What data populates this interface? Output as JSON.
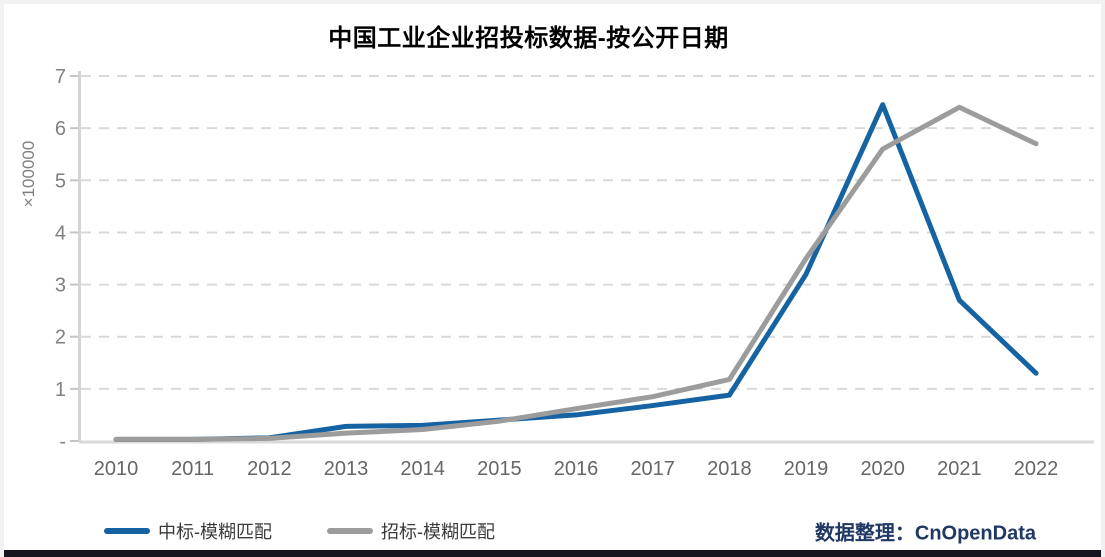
{
  "page": {
    "title": "中国工业企业招投标数据-按公开日期",
    "credit": {
      "label": "数据整理：",
      "brand": "CnOpenData"
    }
  },
  "colors": {
    "series_win_blue": "#1563a2",
    "series_tender_gray": "#9c9c9c",
    "grid": "#d9d9d9",
    "axis": "#d4d4d4",
    "y_tick_text": "#808080",
    "x_tick_text": "#666666",
    "credit_navy": "#1f3864",
    "bottom_bar": "#14141e"
  },
  "chart_data": {
    "type": "line",
    "title": "中国工业企业招投标数据-按公开日期",
    "x": [
      2010,
      2011,
      2012,
      2013,
      2014,
      2015,
      2016,
      2017,
      2018,
      2019,
      2020,
      2021,
      2022
    ],
    "series": [
      {
        "name": "中标-模糊匹配",
        "color": "#1563a2",
        "values": [
          0.03,
          0.03,
          0.06,
          0.28,
          0.3,
          0.4,
          0.5,
          0.68,
          0.88,
          3.2,
          6.45,
          2.7,
          1.3
        ]
      },
      {
        "name": "招标-模糊匹配",
        "color": "#9c9c9c",
        "values": [
          0.03,
          0.03,
          0.05,
          0.15,
          0.22,
          0.38,
          0.62,
          0.85,
          1.18,
          3.5,
          5.6,
          6.4,
          5.7
        ]
      }
    ],
    "ylabel": "×100000",
    "xlabel": "",
    "ylim": [
      0,
      7
    ],
    "yticks": [
      0,
      1,
      2,
      3,
      4,
      5,
      6,
      7
    ],
    "ytick_labels": [
      "-",
      "1",
      "2",
      "3",
      "4",
      "5",
      "6",
      "7"
    ],
    "grid": "horizontal-dashed",
    "legend_position": "bottom-left"
  }
}
